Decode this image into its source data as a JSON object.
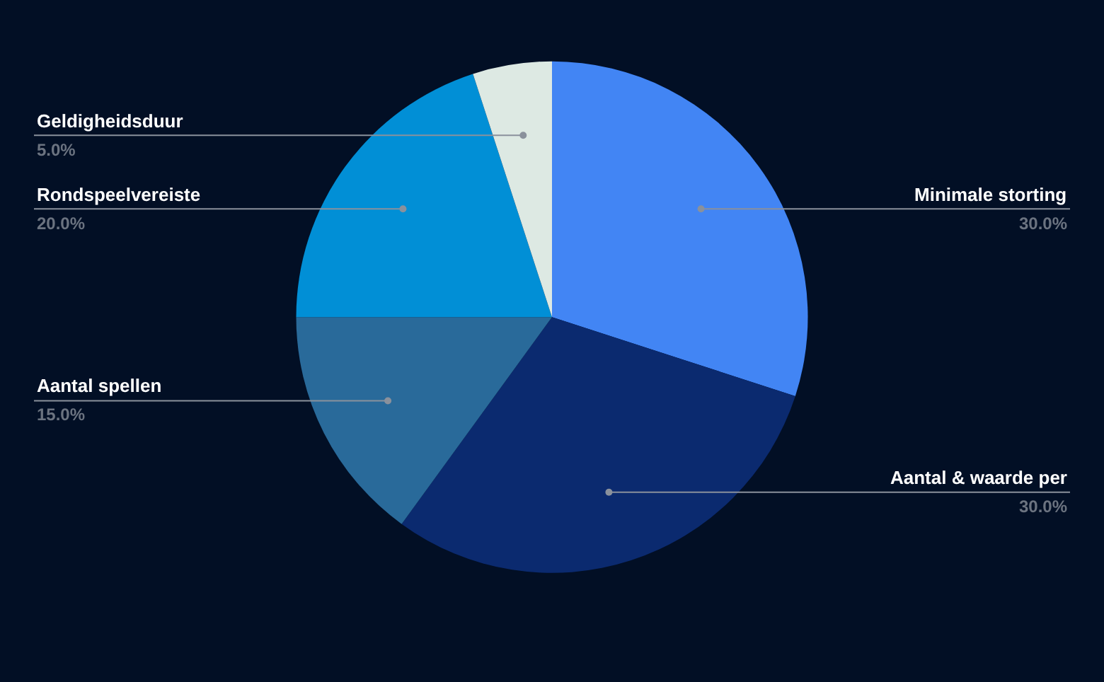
{
  "chart_data": {
    "type": "pie",
    "categories": [
      "Minimale storting",
      "Aantal & waarde per",
      "Aantal spellen",
      "Rondspeelvereiste",
      "Geldigheidsduur"
    ],
    "values": [
      30,
      30,
      15,
      20,
      5
    ],
    "value_labels": [
      "30.0%",
      "30.0%",
      "15.0%",
      "20.0%",
      "5.0%"
    ],
    "colors": [
      "#4285f4",
      "#0b2a6f",
      "#296a9a",
      "#018fd6",
      "#dde9e3"
    ]
  }
}
